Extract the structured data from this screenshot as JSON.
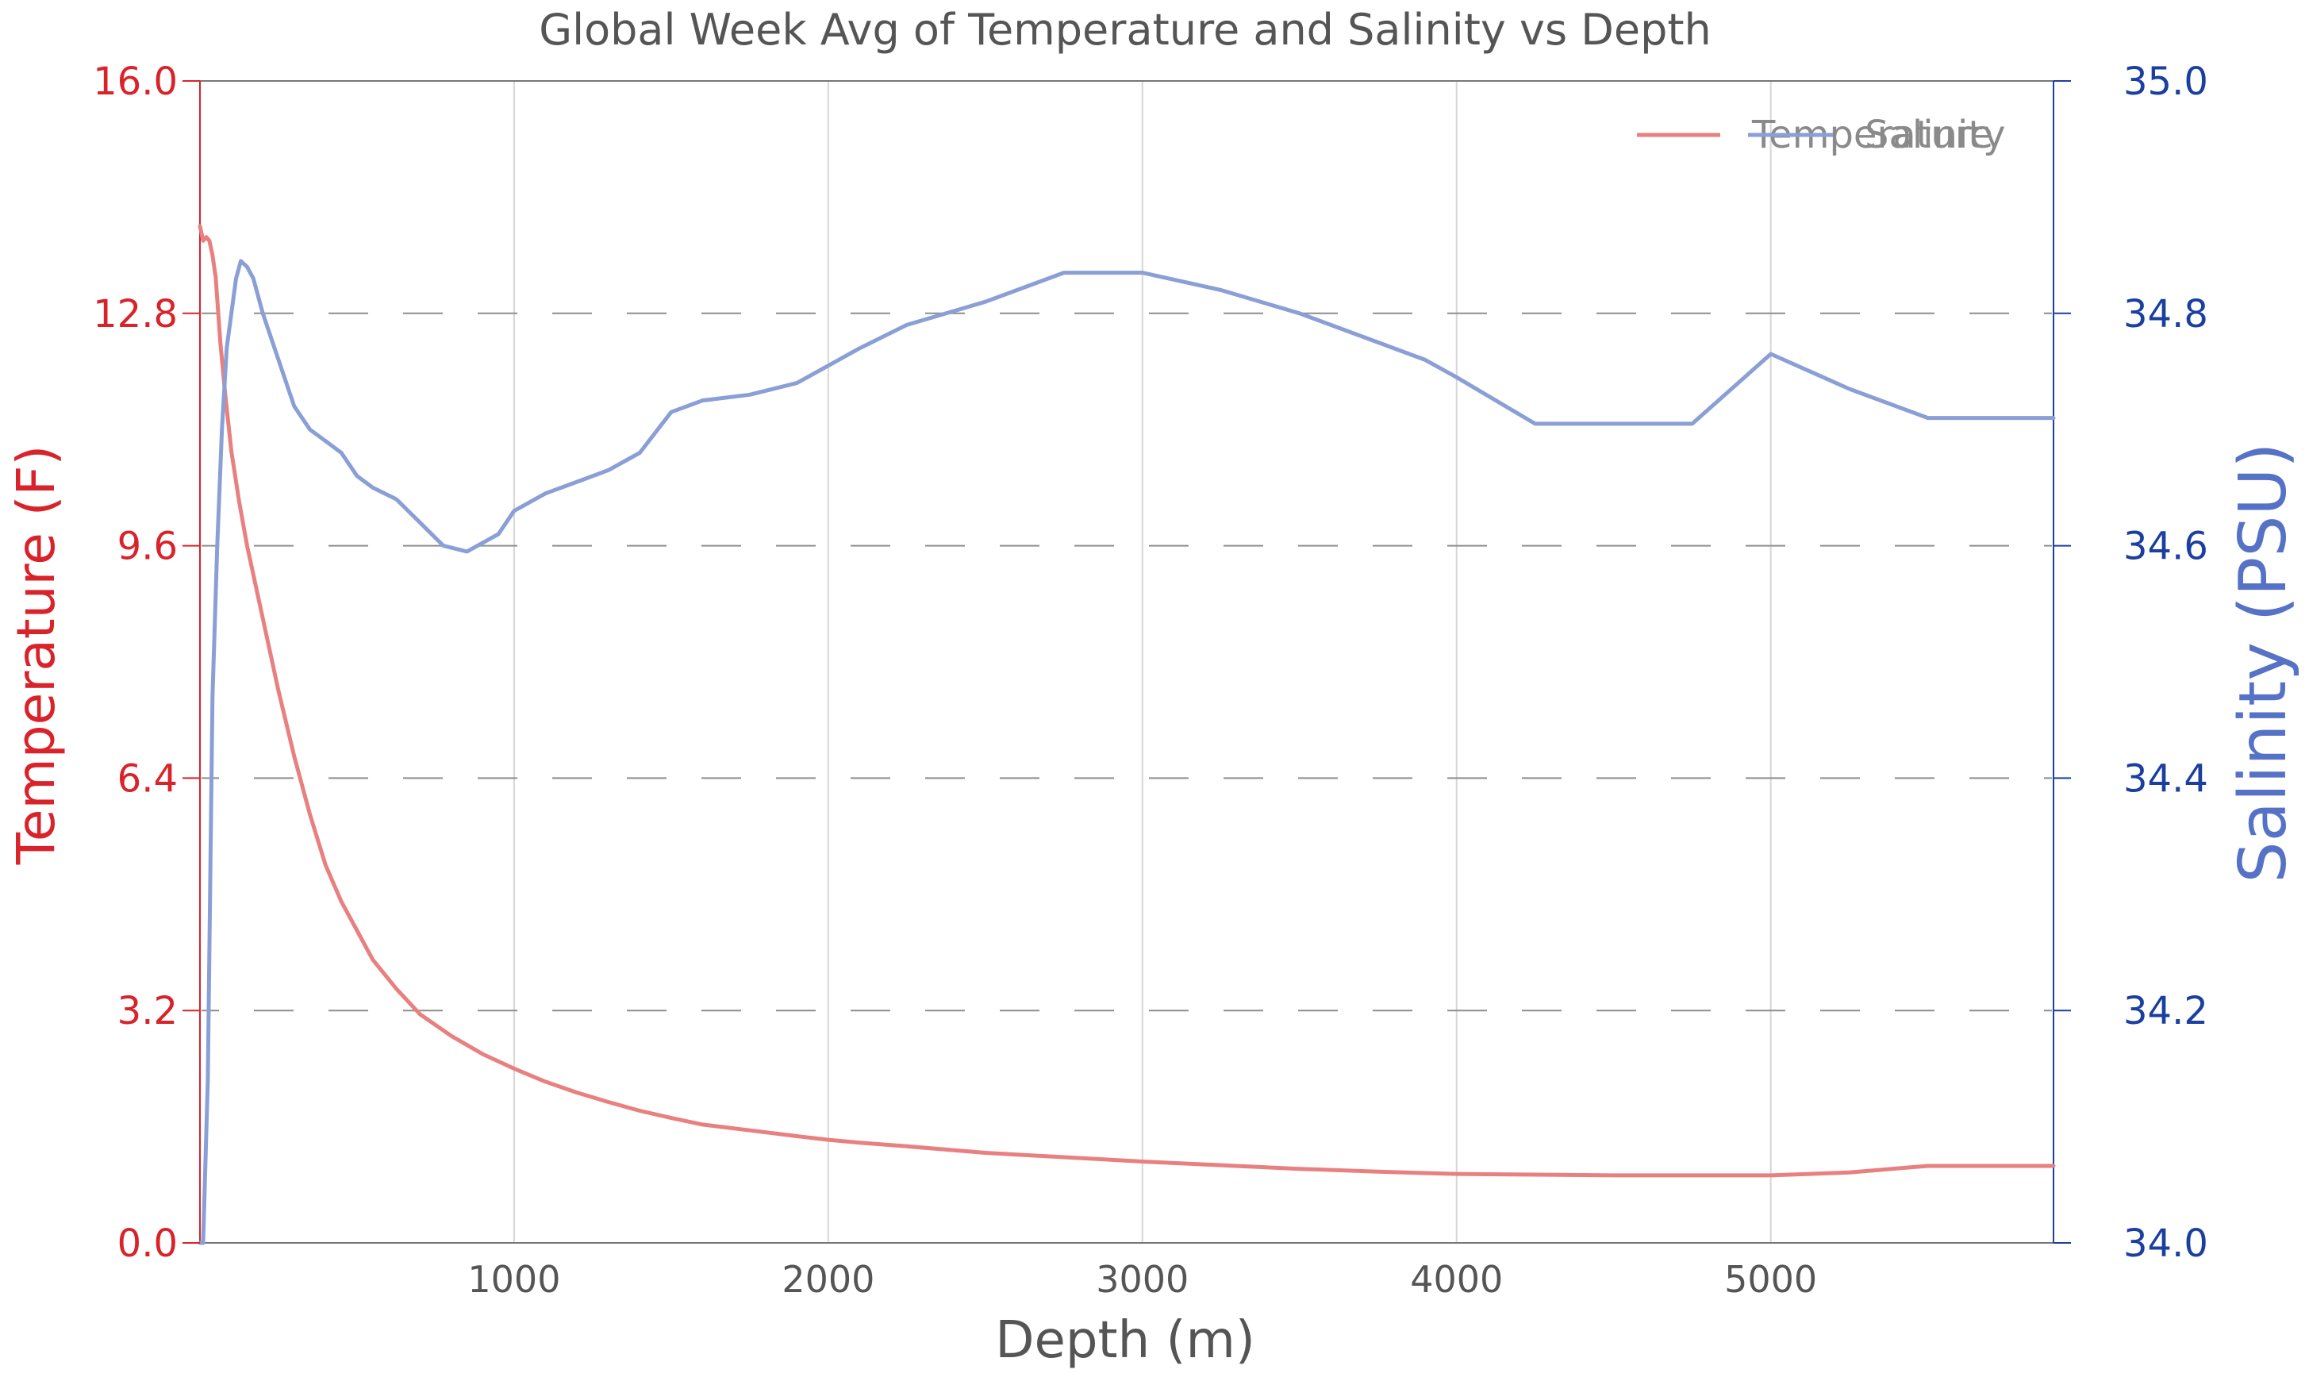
{
  "chart_data": {
    "type": "line",
    "title": "Global Week Avg of Temperature and Salinity vs Depth",
    "xlabel": "Depth (m)",
    "ylabel_left": "Temperature (F)",
    "ylabel_right": "Salinity (PSU)",
    "xlim": [
      0,
      5900
    ],
    "ylim_left": [
      0,
      16
    ],
    "ylim_right": [
      34.0,
      35.0
    ],
    "x_ticks": [
      1000,
      2000,
      3000,
      4000,
      5000
    ],
    "x_tick_labels": [
      "1000",
      "2000",
      "3000",
      "4000",
      "5000"
    ],
    "y_left_ticks": [
      0,
      3.2,
      6.4,
      9.6,
      12.8,
      16
    ],
    "y_left_tick_labels": [
      "0.0",
      "3.2",
      "6.4",
      "9.6",
      "12.8",
      "16.0"
    ],
    "y_right_ticks": [
      34.0,
      34.2,
      34.4,
      34.6,
      34.8,
      35.0
    ],
    "y_right_tick_labels": [
      "34.0",
      "34.2",
      "34.4",
      "34.6",
      "34.8",
      "35.0"
    ],
    "grid": {
      "x": true,
      "y": "dashed"
    },
    "legend_position": "top-right",
    "colors": {
      "temperature": "#e98080",
      "salinity": "#8a9fd6",
      "left_axis": "#d9232a",
      "right_axis": "#1b3fa0",
      "right_label": "#5572c6",
      "text": "#555555"
    },
    "series": [
      {
        "name": "Temperature",
        "axis": "left",
        "x": [
          0,
          10,
          20,
          30,
          40,
          50,
          65,
          80,
          100,
          125,
          150,
          175,
          200,
          250,
          300,
          350,
          400,
          450,
          500,
          550,
          625,
          700,
          800,
          900,
          1000,
          1100,
          1200,
          1300,
          1400,
          1500,
          1600,
          1750,
          1900,
          2000,
          2100,
          2250,
          2500,
          2750,
          3000,
          3250,
          3500,
          3750,
          4000,
          4250,
          4500,
          4750,
          5000,
          5250,
          5500,
          5750,
          5900
        ],
        "values": [
          14.0,
          13.8,
          13.85,
          13.8,
          13.6,
          13.3,
          12.4,
          11.7,
          10.9,
          10.2,
          9.6,
          9.1,
          8.6,
          7.6,
          6.7,
          5.9,
          5.2,
          4.7,
          4.3,
          3.9,
          3.5,
          3.15,
          2.85,
          2.6,
          2.4,
          2.22,
          2.07,
          1.94,
          1.82,
          1.72,
          1.63,
          1.55,
          1.47,
          1.42,
          1.38,
          1.33,
          1.24,
          1.18,
          1.12,
          1.07,
          1.02,
          0.98,
          0.95,
          0.94,
          0.93,
          0.93,
          0.93,
          0.97,
          1.06,
          1.06,
          1.06
        ]
      },
      {
        "name": "Salinity",
        "axis": "right",
        "x": [
          0,
          10,
          25,
          40,
          55,
          70,
          85,
          100,
          115,
          130,
          150,
          170,
          200,
          250,
          300,
          350,
          400,
          450,
          500,
          550,
          625,
          700,
          775,
          850,
          950,
          1000,
          1100,
          1200,
          1300,
          1400,
          1500,
          1600,
          1750,
          1900,
          2000,
          2100,
          2250,
          2500,
          2750,
          3000,
          3250,
          3500,
          3750,
          3900,
          4000,
          4250,
          4500,
          4750,
          5000,
          5250,
          5500,
          5750,
          5900
        ],
        "values": [
          34.0,
          34.0,
          34.14,
          34.47,
          34.6,
          34.7,
          34.77,
          34.8,
          34.83,
          34.845,
          34.84,
          34.83,
          34.8,
          34.76,
          34.72,
          34.7,
          34.69,
          34.68,
          34.66,
          34.65,
          34.64,
          34.62,
          34.6,
          34.595,
          34.61,
          34.63,
          34.645,
          34.655,
          34.665,
          34.68,
          34.715,
          34.725,
          34.73,
          34.74,
          34.755,
          34.77,
          34.79,
          34.81,
          34.835,
          34.835,
          34.82,
          34.8,
          34.775,
          34.76,
          34.745,
          34.705,
          34.705,
          34.705,
          34.765,
          34.735,
          34.71,
          34.71,
          34.71
        ]
      }
    ]
  }
}
